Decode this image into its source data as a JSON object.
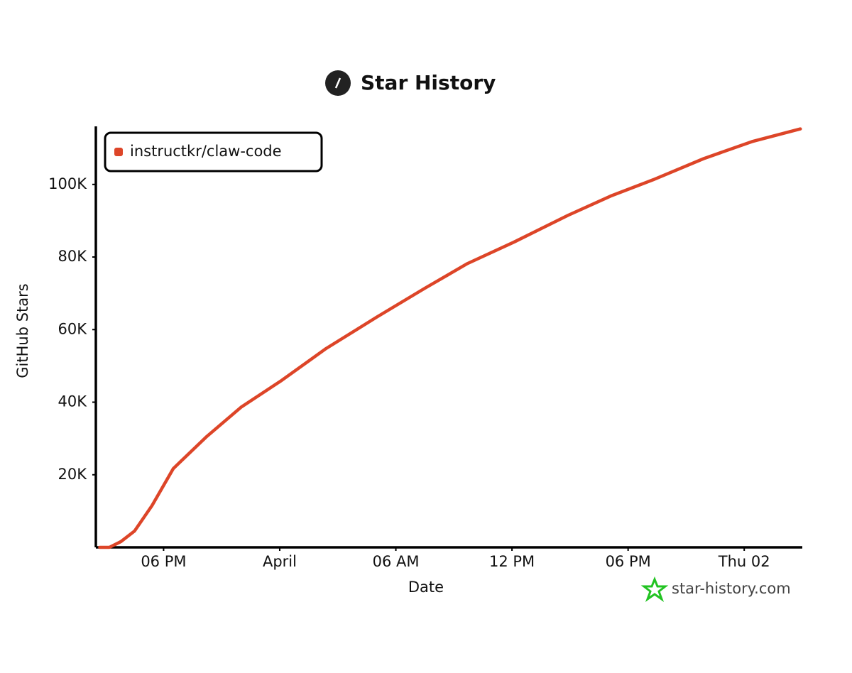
{
  "chart_data": {
    "type": "line",
    "title": "Star History",
    "x_label": "Date",
    "y_label": "GitHub Stars",
    "watermark": "star-history.com",
    "legend": "top-left",
    "x": [
      -3.3,
      -2.8,
      -2.2,
      -1.5,
      -0.6,
      0.5,
      2.2,
      4.0,
      6.1,
      8.4,
      11.0,
      13.5,
      15.7,
      18.1,
      20.9,
      23.1,
      25.3,
      27.9,
      30.4,
      32.9
    ],
    "series": [
      {
        "name": "instructkr/claw-code",
        "color": "#dd4528",
        "values": [
          0,
          0,
          1600,
          4500,
          11500,
          21700,
          30400,
          38600,
          46000,
          54800,
          63400,
          71400,
          78200,
          84100,
          91500,
          96800,
          101300,
          107100,
          111800,
          115300
        ]
      }
    ],
    "xlim": [
      -3.5,
      33
    ],
    "xticks": [
      {
        "value": 0,
        "label": "06 PM"
      },
      {
        "value": 6,
        "label": "April"
      },
      {
        "value": 12,
        "label": "06 AM"
      },
      {
        "value": 18,
        "label": "12 PM"
      },
      {
        "value": 24,
        "label": "06 PM"
      },
      {
        "value": 30,
        "label": "Thu 02"
      }
    ],
    "ylim": [
      0,
      116000
    ],
    "yticks": [
      {
        "value": 20000,
        "label": "20K"
      },
      {
        "value": 40000,
        "label": "40K"
      },
      {
        "value": 60000,
        "label": "60K"
      },
      {
        "value": 80000,
        "label": "80K"
      },
      {
        "value": 100000,
        "label": "100K"
      }
    ],
    "grid": false
  }
}
